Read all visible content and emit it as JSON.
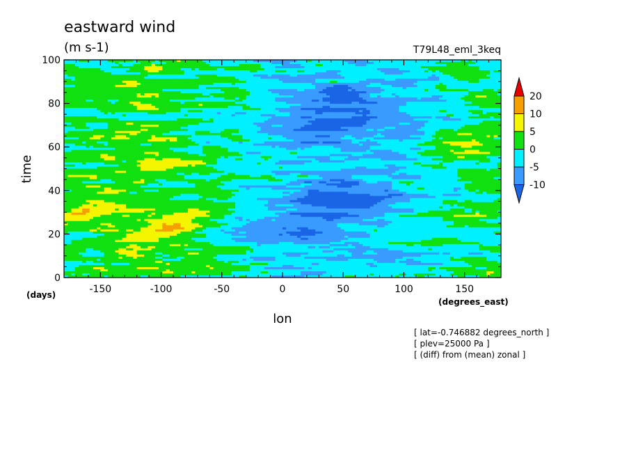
{
  "chart_data": {
    "type": "heatmap",
    "title": "eastward wind",
    "units": "(m s-1)",
    "experiment": "T79L48_eml_3keq",
    "xlabel": "lon",
    "ylabel": "time",
    "x_unit": "(degrees_east)",
    "y_unit": "(days)",
    "xlim": [
      -180,
      180
    ],
    "ylim": [
      0,
      100
    ],
    "x_ticks": [
      -150,
      -100,
      -50,
      0,
      50,
      100,
      150
    ],
    "y_ticks": [
      0,
      20,
      40,
      60,
      80,
      100
    ],
    "colorbar": {
      "levels": [
        -10,
        -5,
        0,
        5,
        10,
        20
      ],
      "colors": [
        "#1a64e6",
        "#3a9bff",
        "#00f0ff",
        "#11e011",
        "#f5f500",
        "#f5a000",
        "#e80000"
      ]
    },
    "annotations": [
      "[ lat=-0.746882 degrees_north ]",
      "[ plev=25000 Pa ]",
      "[ (diff) from (mean) zonal ]"
    ]
  }
}
